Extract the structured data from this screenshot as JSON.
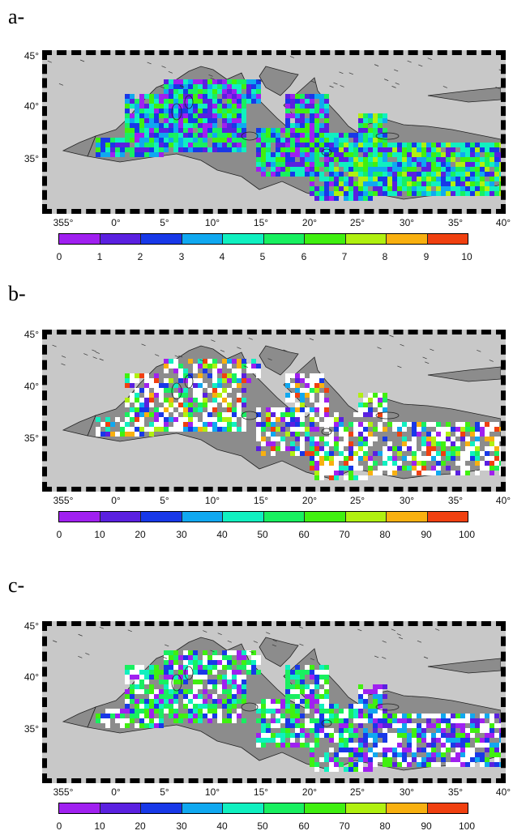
{
  "panels": [
    {
      "label": "a-",
      "lat_ticks": [
        "45°",
        "40°",
        "35°"
      ],
      "lon_ticks": [
        "355°",
        "0°",
        "5°",
        "10°",
        "15°",
        "20°",
        "25°",
        "30°",
        "35°",
        "40°"
      ],
      "colorbar_ticks": [
        "0",
        "1",
        "2",
        "3",
        "4",
        "5",
        "6",
        "7",
        "8",
        "9",
        "10"
      ],
      "range": [
        0,
        10
      ],
      "scheme": "dense"
    },
    {
      "label": "b-",
      "lat_ticks": [
        "45°",
        "40°",
        "35°"
      ],
      "lon_ticks": [
        "355°",
        "0°",
        "5°",
        "10°",
        "15°",
        "20°",
        "25°",
        "30°",
        "35°",
        "40°"
      ],
      "colorbar_ticks": [
        "0",
        "10",
        "20",
        "30",
        "40",
        "50",
        "60",
        "70",
        "80",
        "90",
        "100"
      ],
      "range": [
        0,
        100
      ],
      "scheme": "sparse-white"
    },
    {
      "label": "c-",
      "lat_ticks": [
        "45°",
        "40°",
        "35°"
      ],
      "lon_ticks": [
        "355°",
        "0°",
        "5°",
        "10°",
        "15°",
        "20°",
        "25°",
        "30°",
        "35°",
        "40°"
      ],
      "colorbar_ticks": [
        "0",
        "10",
        "20",
        "30",
        "40",
        "50",
        "60",
        "70",
        "80",
        "90",
        "100"
      ],
      "range": [
        0,
        100
      ],
      "scheme": "mixed"
    }
  ],
  "colorbar_colors": [
    "#a020f0",
    "#5a20e0",
    "#1838e8",
    "#10a8f0",
    "#10f0c0",
    "#18f060",
    "#40f010",
    "#b0f010",
    "#f8b010",
    "#f04010"
  ],
  "colors": {
    "land": "#8c8c8c",
    "sea": "#c8c8c8",
    "missing": "#ffffff"
  }
}
